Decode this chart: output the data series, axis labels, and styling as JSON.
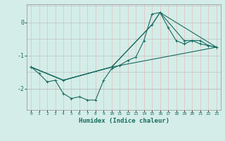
{
  "xlabel": "Humidex (Indice chaleur)",
  "ylabel": "",
  "xlim": [
    -0.5,
    23.5
  ],
  "ylim": [
    -2.65,
    0.55
  ],
  "bg_color": "#d4ede8",
  "line_color": "#1a6b60",
  "grid_color": "#b8b8b8",
  "grid_color_red": "#e8b0b0",
  "yticks": [
    0,
    -1,
    -2
  ],
  "xticks": [
    0,
    1,
    2,
    3,
    4,
    5,
    6,
    7,
    8,
    9,
    10,
    11,
    12,
    13,
    14,
    15,
    16,
    17,
    18,
    19,
    20,
    21,
    22,
    23
  ],
  "line1_x": [
    0,
    1,
    2,
    3,
    4,
    5,
    6,
    7,
    8,
    9,
    10,
    11,
    12,
    13,
    14,
    15,
    16,
    17,
    18,
    19,
    20,
    21,
    22,
    23
  ],
  "line1_y": [
    -1.35,
    -1.55,
    -1.8,
    -1.75,
    -2.15,
    -2.3,
    -2.25,
    -2.35,
    -2.35,
    -1.75,
    -1.4,
    -1.3,
    -1.15,
    -1.05,
    -0.55,
    0.25,
    0.3,
    -0.15,
    -0.55,
    -0.65,
    -0.55,
    -0.65,
    -0.7,
    -0.75
  ],
  "line2_x": [
    0,
    4,
    10,
    15,
    16,
    19,
    20,
    21,
    22,
    23
  ],
  "line2_y": [
    -1.35,
    -1.75,
    -1.35,
    -0.07,
    0.3,
    -0.55,
    -0.55,
    -0.55,
    -0.7,
    -0.75
  ],
  "line3_x": [
    0,
    4,
    10,
    15,
    16,
    23
  ],
  "line3_y": [
    -1.35,
    -1.75,
    -1.35,
    -0.07,
    0.3,
    -0.75
  ],
  "line4_x": [
    0,
    4,
    10,
    23
  ],
  "line4_y": [
    -1.35,
    -1.75,
    -1.35,
    -0.75
  ]
}
